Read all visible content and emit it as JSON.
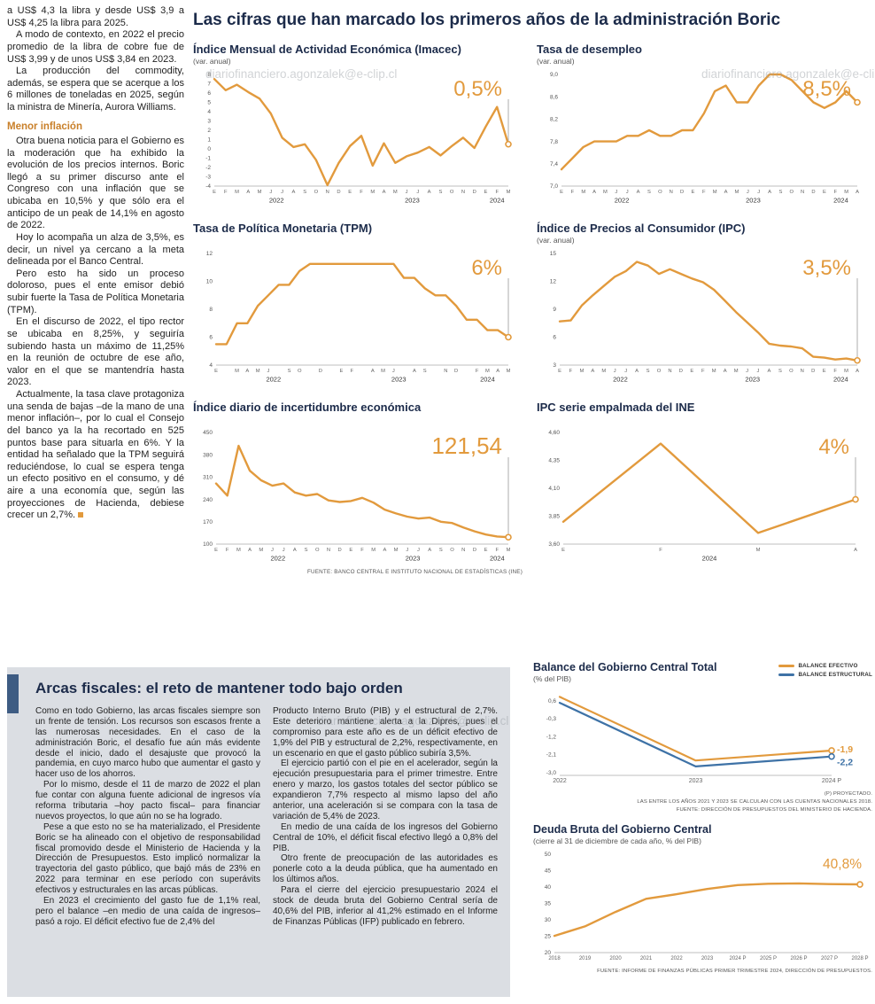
{
  "watermark": "diariofinanciero.agonzalek@e-clip.cl",
  "main": {
    "headline": "Las cifras que han marcado los primeros años de la administración Boric",
    "fuente": "FUENTE: BANCO CENTRAL E INSTITUTO NACIONAL DE ESTADÍSTICAS (INE)"
  },
  "article": {
    "intro": [
      "a US$ 4,3 la libra y desde US$ 3,9 a US$ 4,25 la libra para 2025.",
      "A modo de contexto, en 2022 el precio promedio de la libra de cobre fue de US$ 3,99 y de unos US$ 3,84 en 2023.",
      "La producción del commodity, además, se espera que se acerque a los 6 millones de toneladas en 2025, según la ministra de Minería, Aurora Williams."
    ],
    "subhead": "Menor inflación",
    "body": [
      "Otra buena noticia para el Gobierno es la moderación que ha exhibido la evolución de los precios internos. Boric llegó a su primer discurso ante el Congreso con una inflación que se ubicaba en 10,5% y que sólo era el anticipo de un peak de 14,1% en agosto de 2022.",
      "Hoy lo acompaña un alza de 3,5%, es decir, un nivel ya cercano a la meta delineada por el Banco Central.",
      "Pero esto ha sido un proceso doloroso, pues el ente emisor debió subir fuerte la Tasa de Política Monetaria (TPM).",
      "En el discurso de 2022, el tipo rector se ubicaba en 8,25%, y seguiría subiendo hasta un máximo de 11,25% en la reunión de octubre de ese año, valor en el que se mantendría hasta 2023.",
      "Actualmente, la tasa clave protagoniza una senda de bajas –de la mano de una menor inflación–, por lo cual el Consejo del banco ya la ha recortado en 525 puntos base para situarla en 6%. Y la entidad ha señalado que la TPM seguirá reduciéndose, lo cual se espera tenga un efecto positivo en el consumo, y dé aire a una economía que, según las proyecciones de Hacienda, debiese crecer un 2,7%."
    ]
  },
  "fiscal": {
    "title": "Arcas fiscales: el reto de mantener todo bajo orden",
    "col1": [
      "Como en todo Gobierno, las arcas fiscales siempre son un frente de tensión. Los recursos son escasos frente a las numerosas necesidades. En el caso de la administración Boric, el desafío fue aún más evidente desde el inicio, dado el desajuste que provocó la pandemia, en cuyo marco hubo que aumentar el gasto y hacer uso de los ahorros.",
      "Por lo mismo, desde el 11 de marzo de 2022 el plan fue contar con alguna fuente adicional de ingresos vía reforma tributaria –hoy pacto fiscal– para financiar nuevos proyectos, lo que aún no se ha logrado.",
      "Pese a que esto no se ha materializado, el Presidente Boric se ha alineado con el objetivo de responsabilidad fiscal promovido desde el Ministerio de Hacienda y la Dirección de Presupuestos. Esto implicó normalizar la trayectoria del gasto público, que bajó más de 23% en 2022 para terminar en ese período con superávits efectivos y estructurales en las arcas públicas.",
      "En 2023 el crecimiento del gasto fue de 1,1% real, pero el balance –en medio de una caída de ingresos– pasó a rojo. El déficit efectivo fue de 2,4% del"
    ],
    "col2": [
      "Producto Interno Bruto (PIB) y el estructural de 2,7%. Este deterioro mantiene alerta a la Dipres, pues el compromiso para este año es de un déficit efectivo de 1,9% del PIB y estructural de 2,2%, respectivamente, en un escenario en que el gasto público subiría 3,5%.",
      "El ejercicio partió con el pie en el acelerador, según la ejecución presupuestaria para el primer trimestre. Entre enero y marzo, los gastos totales del sector público se expandieron 7,7% respecto al mismo lapso del año anterior, una aceleración si se compara con la tasa de variación de 5,4% de 2023.",
      "En medio de una caída de los ingresos del Gobierno Central de 10%, el déficit fiscal efectivo llegó a 0,8% del PIB.",
      "Otro frente de preocupación de las autoridades es ponerle coto a la deuda pública, que ha aumentado en los últimos años.",
      "Para el cierre del ejercicio presupuestario 2024 el stock de deuda bruta del Gobierno Central sería de 40,6% del PIB, inferior al 41,2% estimado en el Informe de Finanzas Públicas (IFP) publicado en febrero."
    ]
  },
  "chart_data": [
    {
      "type": "line",
      "title": "Índice Mensual de Actividad Económica (Imacec)",
      "subtitle": "(var. anual)",
      "big_label": "0,5%",
      "big_size": 24,
      "leader": true,
      "color": "#E29A3D",
      "y_range": [
        -4,
        8
      ],
      "y_ticks": {
        "labels": [
          "8",
          "7",
          "6",
          "5",
          "4",
          "3",
          "2",
          "1",
          "0",
          "-1",
          "-2",
          "-3",
          "-4"
        ],
        "values": [
          8,
          7,
          6,
          5,
          4,
          3,
          2,
          1,
          0,
          -1,
          -2,
          -3,
          -4
        ]
      },
      "x_labels": [
        "E",
        "F",
        "M",
        "A",
        "M",
        "J",
        "J",
        "A",
        "S",
        "O",
        "N",
        "D",
        "E",
        "F",
        "M",
        "A",
        "M",
        "J",
        "J",
        "A",
        "S",
        "O",
        "N",
        "D",
        "E",
        "F",
        "M"
      ],
      "years": [
        {
          "label": "2022",
          "from": 0,
          "to": 11
        },
        {
          "label": "2023",
          "from": 12,
          "to": 23
        },
        {
          "label": "2024",
          "from": 24,
          "to": 26
        }
      ],
      "values": [
        7.5,
        6.3,
        6.9,
        6.1,
        5.4,
        3.8,
        1.2,
        0.2,
        0.5,
        -1.2,
        -3.9,
        -1.5,
        0.3,
        1.4,
        -1.8,
        0.6,
        -1.5,
        -0.8,
        -0.4,
        0.2,
        -0.7,
        0.3,
        1.2,
        0.1,
        2.4,
        4.5,
        0.5
      ],
      "m": [
        24,
        8,
        16,
        26
      ]
    },
    {
      "type": "line",
      "title": "Tasa de desempleo",
      "subtitle": "(var. anual)",
      "big_label": "8,5%",
      "big_size": 24,
      "leader": true,
      "color": "#E29A3D",
      "y_range": [
        7.0,
        9.0
      ],
      "y_ticks": {
        "labels": [
          "9,0",
          "8,6",
          "8,2",
          "7,8",
          "7,4",
          "7,0"
        ],
        "values": [
          9.0,
          8.6,
          8.2,
          7.8,
          7.4,
          7.0
        ]
      },
      "x_labels": [
        "E",
        "F",
        "M",
        "A",
        "M",
        "J",
        "J",
        "A",
        "S",
        "O",
        "N",
        "D",
        "E",
        "F",
        "M",
        "A",
        "M",
        "J",
        "J",
        "A",
        "S",
        "O",
        "N",
        "D",
        "E",
        "F",
        "M",
        "A"
      ],
      "years": [
        {
          "label": "2022",
          "from": 0,
          "to": 11
        },
        {
          "label": "2023",
          "from": 12,
          "to": 23
        },
        {
          "label": "2024",
          "from": 24,
          "to": 27
        }
      ],
      "values": [
        7.3,
        7.5,
        7.7,
        7.8,
        7.8,
        7.8,
        7.9,
        7.9,
        8.0,
        7.9,
        7.9,
        8.0,
        8.0,
        8.3,
        8.7,
        8.8,
        8.5,
        8.5,
        8.8,
        9.0,
        9.0,
        8.9,
        8.7,
        8.5,
        8.4,
        8.5,
        8.7,
        8.5
      ],
      "m": [
        28,
        8,
        16,
        26
      ]
    },
    {
      "type": "line",
      "title": "Tasa de Política Monetaria (TPM)",
      "subtitle": "",
      "big_label": "6%",
      "big_size": 24,
      "leader": true,
      "color": "#E29A3D",
      "y_range": [
        4,
        12
      ],
      "y_ticks": {
        "labels": [
          "12",
          "10",
          "8",
          "6",
          "4"
        ],
        "values": [
          12,
          10,
          8,
          6,
          4
        ]
      },
      "x_labels": [
        "E",
        "",
        "M",
        "A",
        "M",
        "J",
        "",
        "S",
        "O",
        "",
        "D",
        "",
        "E",
        "F",
        "",
        "A",
        "M",
        "J",
        "",
        "A",
        "S",
        "",
        "N",
        "D",
        "",
        "F",
        "M",
        "A",
        "M"
      ],
      "years": [
        {
          "label": "2022",
          "from": 0,
          "to": 11
        },
        {
          "label": "2023",
          "from": 12,
          "to": 23
        },
        {
          "label": "2024",
          "from": 24,
          "to": 28
        }
      ],
      "values": [
        5.5,
        5.5,
        7.0,
        7.0,
        8.25,
        9.0,
        9.75,
        9.75,
        10.75,
        11.25,
        11.25,
        11.25,
        11.25,
        11.25,
        11.25,
        11.25,
        11.25,
        11.25,
        10.25,
        10.25,
        9.5,
        9.0,
        9.0,
        8.25,
        7.25,
        7.25,
        6.5,
        6.5,
        6.0
      ],
      "m": [
        26,
        8,
        16,
        26
      ]
    },
    {
      "type": "line",
      "title": "Índice de Precios al Consumidor (IPC)",
      "subtitle": "(var. anual)",
      "big_label": "3,5%",
      "big_size": 24,
      "leader": true,
      "color": "#E29A3D",
      "y_range": [
        3,
        15
      ],
      "y_ticks": {
        "labels": [
          "15",
          "12",
          "9",
          "6",
          "3"
        ],
        "values": [
          15,
          12,
          9,
          6,
          3
        ]
      },
      "x_labels": [
        "E",
        "F",
        "M",
        "A",
        "M",
        "J",
        "J",
        "A",
        "S",
        "O",
        "N",
        "D",
        "E",
        "F",
        "M",
        "A",
        "M",
        "J",
        "J",
        "A",
        "S",
        "O",
        "N",
        "D",
        "E",
        "F",
        "M",
        "A"
      ],
      "years": [
        {
          "label": "2022",
          "from": 0,
          "to": 11
        },
        {
          "label": "2023",
          "from": 12,
          "to": 23
        },
        {
          "label": "2024",
          "from": 24,
          "to": 27
        }
      ],
      "values": [
        7.7,
        7.8,
        9.4,
        10.5,
        11.5,
        12.5,
        13.1,
        14.1,
        13.7,
        12.8,
        13.3,
        12.8,
        12.3,
        11.9,
        11.1,
        9.9,
        8.7,
        7.6,
        6.5,
        5.3,
        5.1,
        5.0,
        4.8,
        3.9,
        3.8,
        3.6,
        3.7,
        3.5
      ],
      "m": [
        26,
        8,
        16,
        26
      ]
    },
    {
      "type": "line",
      "title": "Índice diario de incertidumbre económica",
      "subtitle": "",
      "big_label": "121,54",
      "big_size": 26,
      "leader": true,
      "color": "#E29A3D",
      "y_range": [
        100,
        450
      ],
      "y_ticks": {
        "labels": [
          "450",
          "380",
          "310",
          "240",
          "170",
          "100"
        ],
        "values": [
          450,
          380,
          310,
          240,
          170,
          100
        ]
      },
      "x_labels": [
        "E",
        "F",
        "M",
        "A",
        "M",
        "J",
        "J",
        "A",
        "S",
        "O",
        "N",
        "D",
        "E",
        "F",
        "M",
        "A",
        "M",
        "J",
        "J",
        "A",
        "S",
        "O",
        "N",
        "D",
        "E",
        "F",
        "M"
      ],
      "years": [
        {
          "label": "2022",
          "from": 0,
          "to": 11
        },
        {
          "label": "2023",
          "from": 12,
          "to": 23
        },
        {
          "label": "2024",
          "from": 24,
          "to": 26
        }
      ],
      "values": [
        290,
        252,
        408,
        330,
        300,
        283,
        290,
        262,
        252,
        257,
        237,
        232,
        235,
        245,
        230,
        208,
        196,
        186,
        180,
        183,
        170,
        166,
        152,
        140,
        130,
        124,
        121.54
      ],
      "m": [
        26,
        8,
        16,
        26
      ]
    },
    {
      "type": "line",
      "title": "IPC serie empalmada del INE",
      "subtitle": "",
      "big_label": "4%",
      "big_size": 24,
      "leader": true,
      "color": "#E29A3D",
      "y_range": [
        3.6,
        4.6
      ],
      "y_ticks": {
        "labels": [
          "4,60",
          "4,35",
          "4,10",
          "3,85",
          "3,60"
        ],
        "values": [
          4.6,
          4.35,
          4.1,
          3.85,
          3.6
        ]
      },
      "x_labels": [
        "E",
        "F",
        "M",
        "A"
      ],
      "years": [
        {
          "label": "2024",
          "from": 0,
          "to": 3
        }
      ],
      "values": [
        3.8,
        4.5,
        3.7,
        4.0
      ],
      "m": [
        30,
        8,
        18,
        26
      ]
    },
    {
      "type": "line",
      "title": "Balance del Gobierno Central Total",
      "subtitle": "(% del PIB)",
      "legend": [
        "BALANCE EFECTIVO",
        "BALANCE ESTRUCTURAL"
      ],
      "notes": [
        "(P) PROYECTADO.",
        "LAS ENTRE LOS AÑOS 2021 Y 2023 SE CALCULAN  CON LAS CUENTAS NACIONALES 2018.",
        "FUENTE: DIRECCIÓN DE PRESUPUESTOS DEL MINISTERIO DE HACIENDA."
      ],
      "y_range": [
        -3.15,
        0.95
      ],
      "y_ticks": {
        "labels": [
          "0,6",
          "-0,3",
          "-1,2",
          "-2,1",
          "-3,0"
        ],
        "values": [
          0.6,
          -0.3,
          -1.2,
          -2.1,
          -3.0
        ]
      },
      "x_labels": [
        "2022",
        "2023",
        "2024 P"
      ],
      "xtick_size": 7,
      "series": [
        {
          "name": "BALANCE EFECTIVO",
          "color": "#E29A3D",
          "values": [
            0.8,
            -2.4,
            -1.9
          ],
          "end_label": "-1,9",
          "end_dy": 2
        },
        {
          "name": "BALANCE ESTRUCTURAL",
          "color": "#3E72A6",
          "values": [
            0.5,
            -2.7,
            -2.2
          ],
          "end_label": "-2,2",
          "end_dy": 10
        }
      ],
      "stroke": 2.2,
      "m": [
        30,
        10,
        46,
        16
      ]
    },
    {
      "type": "line",
      "title": "Deuda Bruta del Gobierno Central",
      "subtitle": "(cierre al 31 de diciembre de cada año, % del PIB)",
      "fuente": "FUENTE: INFORME DE FINANZAS PÚBLICAS PRIMER TRIMESTRE 2024, DIRECCIÓN DE PRESUPUESTOS.",
      "big_label": "40,8%",
      "big_size": 15.5,
      "big_dx": 2,
      "big_dy": 16,
      "leader": false,
      "color": "#E29A3D",
      "y_range": [
        20,
        50
      ],
      "y_ticks": {
        "labels": [
          "50",
          "45",
          "40",
          "35",
          "30",
          "25",
          "20"
        ],
        "values": [
          50,
          45,
          40,
          35,
          30,
          25,
          20
        ]
      },
      "x_labels": [
        "2018",
        "2019",
        "2020",
        "2021",
        "2022",
        "2023",
        "2024 P",
        "2025 P",
        "2026 P",
        "2027 P",
        "2028 P"
      ],
      "xtick_size": 6,
      "values": [
        25.1,
        28.0,
        32.4,
        36.4,
        37.8,
        39.4,
        40.6,
        41.0,
        41.1,
        40.9,
        40.8
      ],
      "m": [
        24,
        8,
        14,
        16
      ]
    }
  ]
}
